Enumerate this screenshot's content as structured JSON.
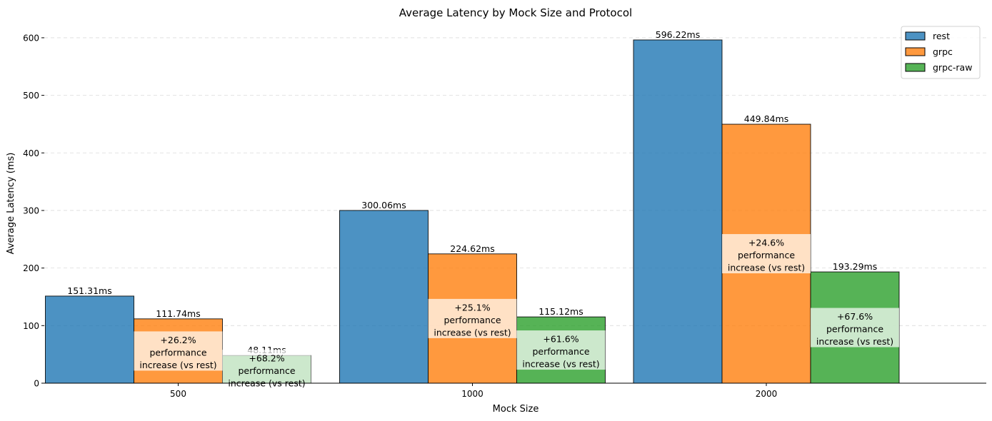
{
  "chart_data": {
    "type": "bar",
    "title": "Average Latency by Mock Size and Protocol",
    "xlabel": "Mock Size",
    "ylabel": "Average Latency (ms)",
    "categories": [
      "500",
      "1000",
      "2000"
    ],
    "ylim": [
      0,
      620
    ],
    "yticks": [
      0,
      100,
      200,
      300,
      400,
      500,
      600
    ],
    "grid": "y-dashed",
    "legend_position": "top-right",
    "series": [
      {
        "name": "rest",
        "color": "#1f77b4",
        "values": [
          151.31,
          300.06,
          596.22
        ],
        "value_labels": [
          "151.31ms",
          "300.06ms",
          "596.22ms"
        ]
      },
      {
        "name": "grpc",
        "color": "#ff7f0e",
        "values": [
          111.74,
          224.62,
          449.84
        ],
        "value_labels": [
          "111.74ms",
          "224.62ms",
          "449.84ms"
        ],
        "annotations": [
          [
            "+26.2%",
            "performance",
            "increase (vs rest)"
          ],
          [
            "+25.1%",
            "performance",
            "increase (vs rest)"
          ],
          [
            "+24.6%",
            "performance",
            "increase (vs rest)"
          ]
        ]
      },
      {
        "name": "grpc-raw",
        "color": "#2ca02c",
        "values": [
          48.11,
          115.12,
          193.29
        ],
        "value_labels": [
          "48.11ms",
          "115.12ms",
          "193.29ms"
        ],
        "annotations": [
          [
            "+68.2%",
            "performance",
            "increase (vs rest)"
          ],
          [
            "+61.6%",
            "performance",
            "increase (vs rest)"
          ],
          [
            "+67.6%",
            "performance",
            "increase (vs rest)"
          ]
        ]
      }
    ]
  }
}
